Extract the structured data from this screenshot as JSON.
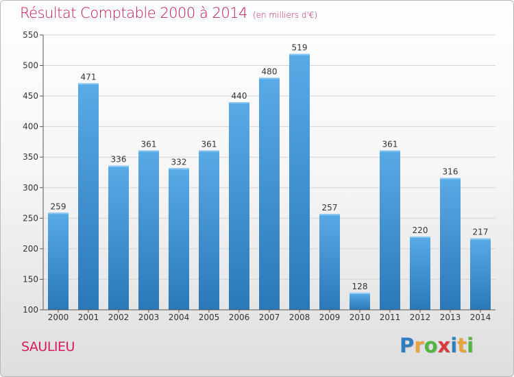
{
  "header": {
    "title": "Résultat Comptable 2000 à 2014",
    "subtitle": "(en milliers d'€)"
  },
  "location": "SAULIEU",
  "logo": {
    "letters": [
      "P",
      "r",
      "o",
      "x",
      "i",
      "t",
      "i"
    ],
    "colors": [
      "#2e7fc1",
      "#e8a33b",
      "#52b443",
      "#d63a3a",
      "#2e7fc1",
      "#e8a33b",
      "#52b443"
    ]
  },
  "colors": {
    "bar_light": "#5aaae6",
    "bar_dark": "#2a78b8",
    "title": "#c2185b"
  },
  "chart_data": {
    "type": "bar",
    "title": "Résultat Comptable 2000 à 2014",
    "subtitle": "(en milliers d'€)",
    "categories": [
      "2000",
      "2001",
      "2002",
      "2003",
      "2004",
      "2005",
      "2006",
      "2007",
      "2008",
      "2009",
      "2010",
      "2011",
      "2012",
      "2013",
      "2014"
    ],
    "values": [
      259,
      471,
      336,
      361,
      332,
      361,
      440,
      480,
      519,
      257,
      128,
      361,
      220,
      316,
      217
    ],
    "ylim": [
      100,
      550
    ],
    "yticks": [
      100,
      150,
      200,
      250,
      300,
      350,
      400,
      450,
      500,
      550
    ],
    "grid": true,
    "xlabel": "",
    "ylabel": ""
  }
}
